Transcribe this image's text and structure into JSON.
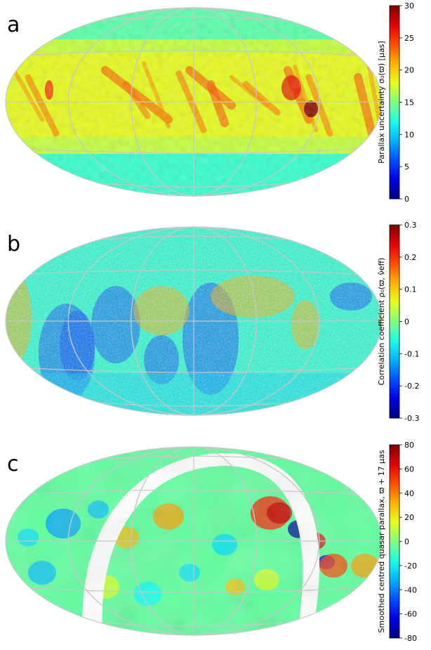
{
  "panels": [
    {
      "letter": "a",
      "chart_data": {
        "type": "heatmap",
        "projection": "Aitoff/Hammer all-sky",
        "colorbar_label": "Parallax uncertainty σ₀(ϖ) [μas]",
        "colorbar_ticks": [
          0,
          5,
          10,
          15,
          20,
          25,
          30
        ],
        "colorbar_range": [
          0,
          30
        ],
        "colormap": "jet",
        "background_level": 17,
        "features": [
          {
            "desc": "high uncertainty spot",
            "value": 30
          },
          {
            "desc": "scanning-law stripes",
            "value": 22
          }
        ]
      }
    },
    {
      "letter": "b",
      "chart_data": {
        "type": "heatmap",
        "projection": "Aitoff/Hammer all-sky",
        "colorbar_label": "Correlation coefficient ρ₀(ϖ, ν̂eff)",
        "colorbar_ticks": [
          -0.3,
          -0.2,
          -0.1,
          0,
          0.1,
          0.2,
          0.3
        ],
        "colorbar_range": [
          -0.3,
          0.3
        ],
        "colormap": "jet",
        "background_level": -0.05
      }
    },
    {
      "letter": "c",
      "chart_data": {
        "type": "heatmap",
        "projection": "Aitoff/Hammer all-sky",
        "colorbar_label": "Smoothed centred quasar parallax, ϖ + 17 μas",
        "colorbar_ticks": [
          -80,
          -60,
          -40,
          -20,
          0,
          20,
          40,
          60,
          80
        ],
        "colorbar_range": [
          -80,
          80
        ],
        "colormap": "jet",
        "background_level": -5,
        "masked_region": "galactic plane band (white)"
      }
    }
  ],
  "colors": {
    "grid": "#c8c8c8",
    "background": "#ffffff"
  }
}
